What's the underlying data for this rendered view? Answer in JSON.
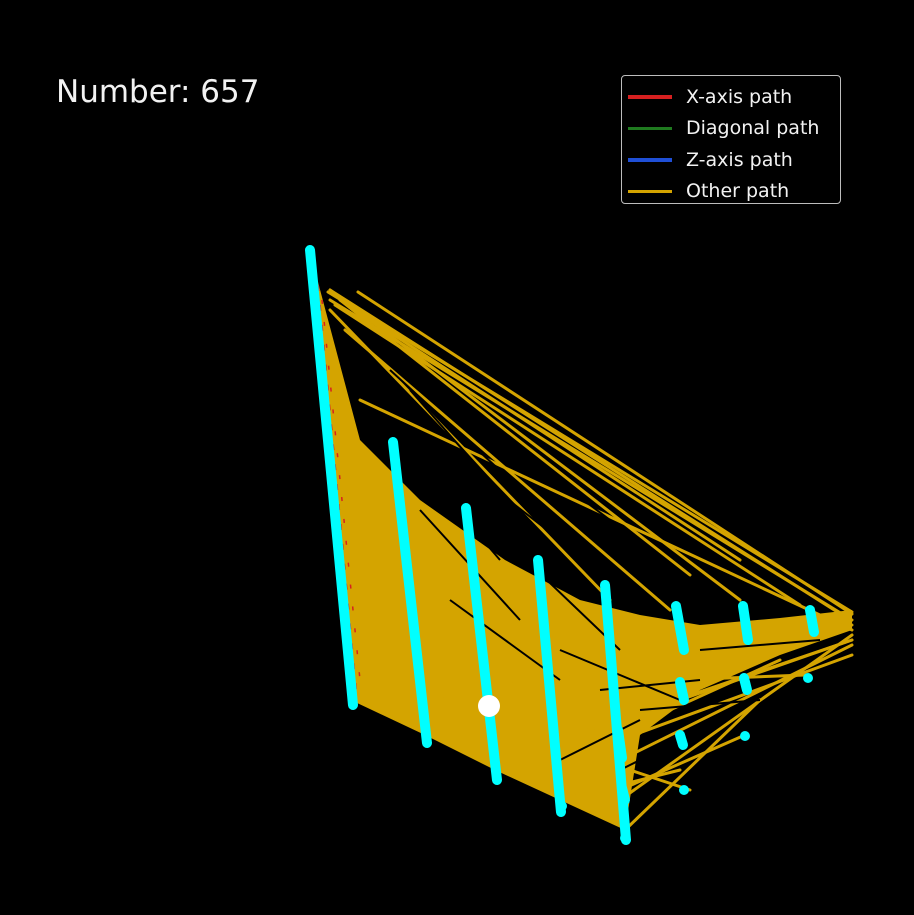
{
  "figure": {
    "number_label": "Number: 657",
    "background": "#000000"
  },
  "chart_data": {
    "type": "line",
    "legend": {
      "placement": "top-right",
      "entries": [
        {
          "label": "X-axis path",
          "color": "#d62020"
        },
        {
          "label": "Diagonal path",
          "color": "#1f7a1f"
        },
        {
          "label": "Z-axis path",
          "color": "#1f4fd6"
        },
        {
          "label": "Other path",
          "color": "#d4a400"
        }
      ]
    },
    "colors": {
      "other_path": "#d4a400",
      "node": "#00ffff",
      "highlight": "#ffffff",
      "x_axis_path": "#d62020"
    },
    "grid": false,
    "axes_visible": false
  }
}
